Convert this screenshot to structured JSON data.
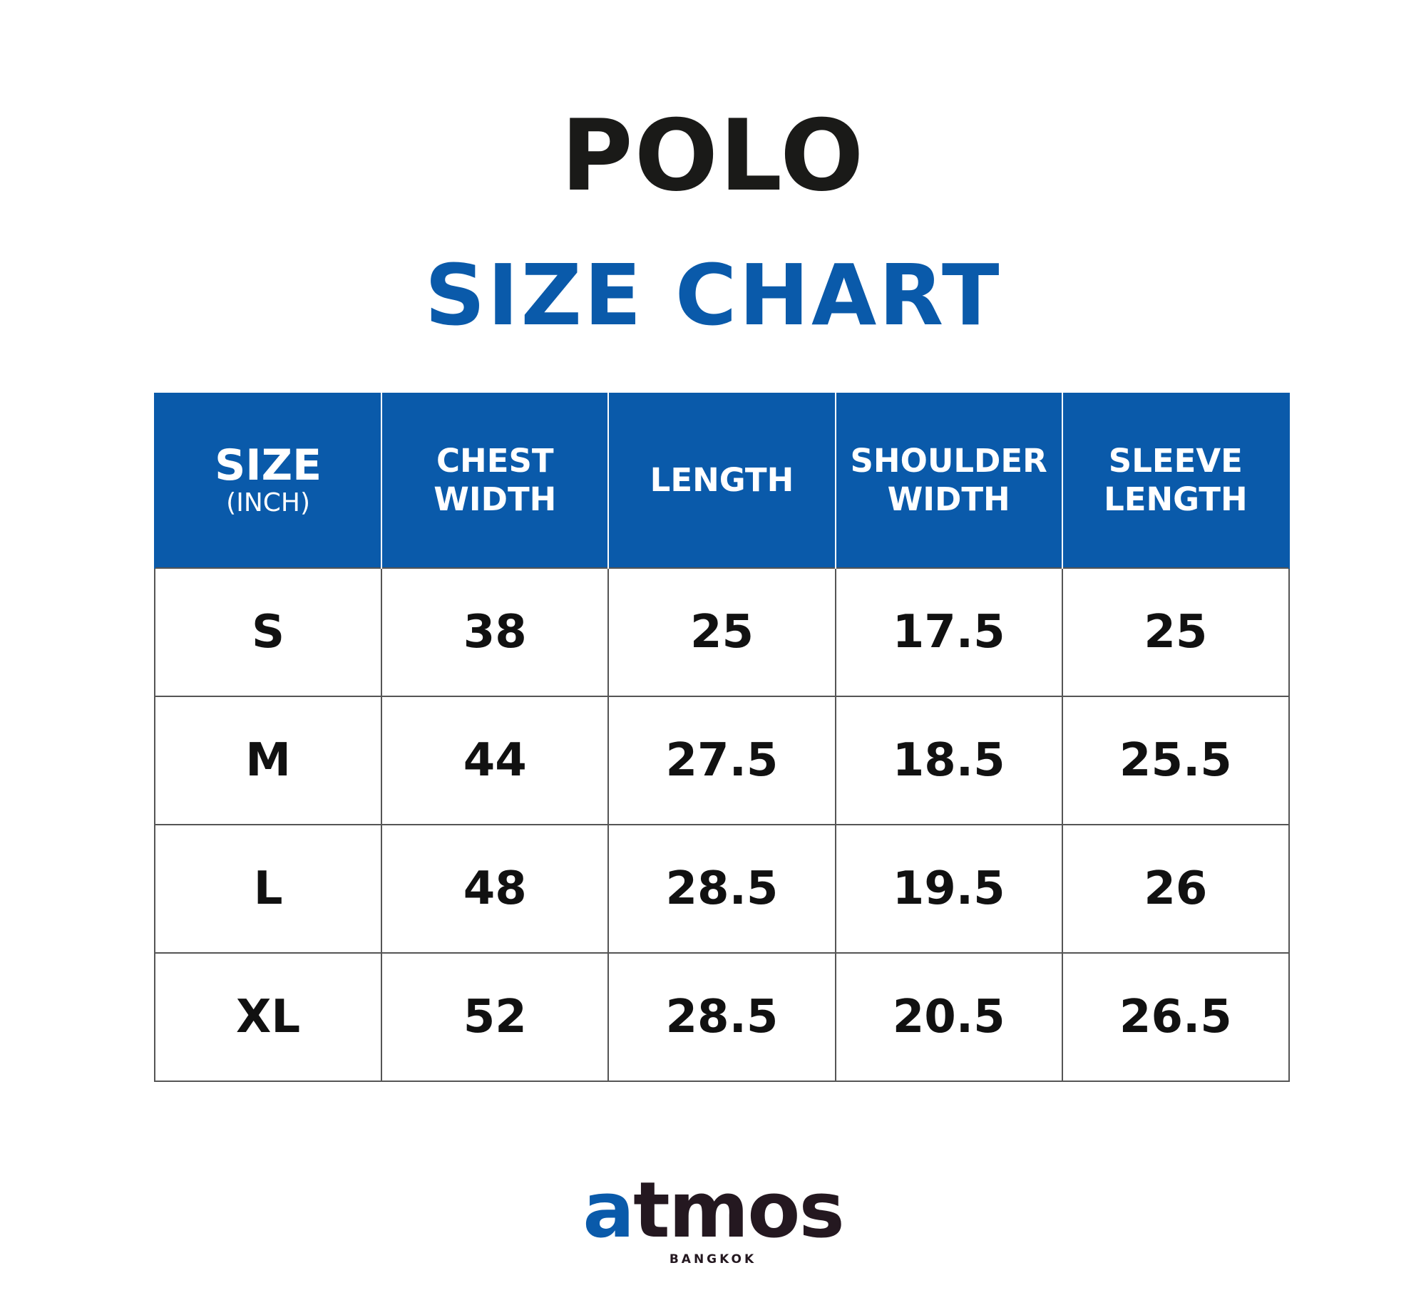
{
  "title": "POLO",
  "subtitle": "SIZE CHART",
  "table": {
    "headers": {
      "size": "SIZE",
      "unit": "(INCH)",
      "chest_1": "CHEST",
      "chest_2": "WIDTH",
      "length": "LENGTH",
      "shoulder_1": "SHOULDER",
      "shoulder_2": "WIDTH",
      "sleeve_1": "SLEEVE",
      "sleeve_2": "LENGTH"
    },
    "rows": [
      [
        "S",
        "38",
        "25",
        "17.5",
        "25"
      ],
      [
        "M",
        "44",
        "27.5",
        "18.5",
        "25.5"
      ],
      [
        "L",
        "48",
        "28.5",
        "19.5",
        "26"
      ],
      [
        "XL",
        "52",
        "28.5",
        "20.5",
        "26.5"
      ]
    ]
  },
  "brand": {
    "logo_part1": "a",
    "logo_part2": "tmos",
    "location": "BANGKOK",
    "colors": {
      "blue": "#0a5aaa",
      "dark": "#241820"
    }
  }
}
